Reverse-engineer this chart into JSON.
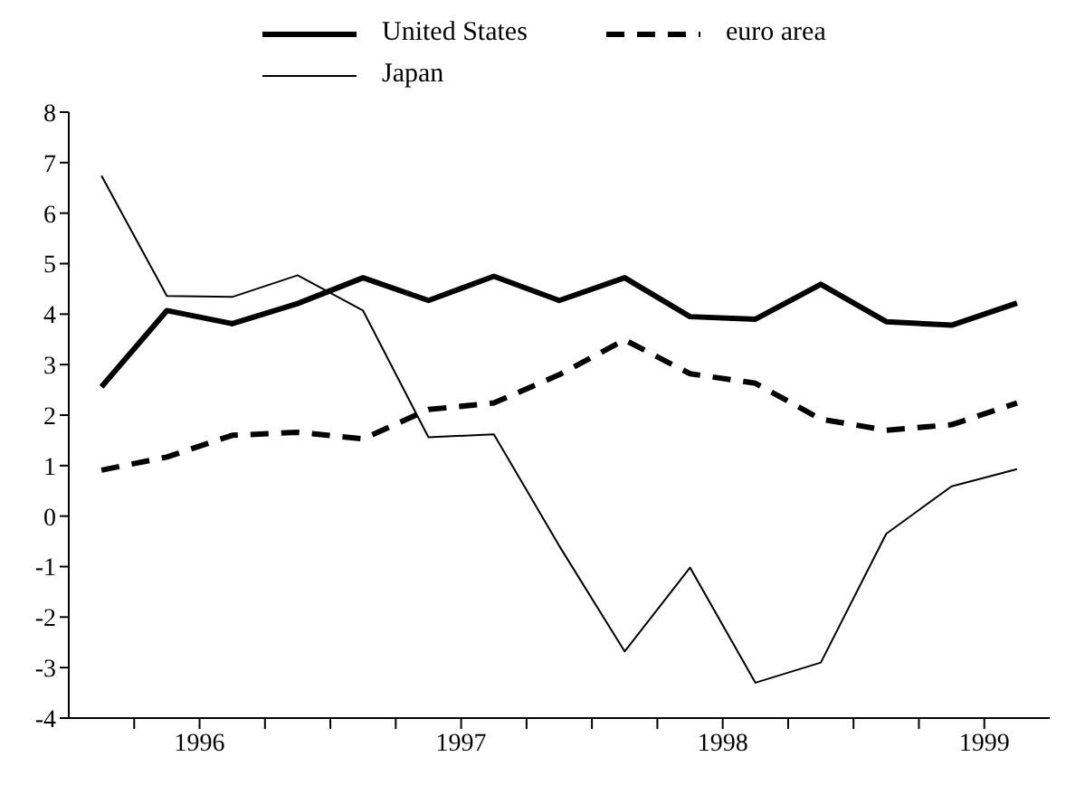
{
  "chart_data": {
    "type": "line",
    "legend": "top",
    "grid": false,
    "marker": "none",
    "x": [
      1995.625,
      1995.875,
      1996.125,
      1996.375,
      1996.625,
      1996.875,
      1997.125,
      1997.375,
      1997.625,
      1997.875,
      1998.125,
      1998.375,
      1998.625,
      1998.875,
      1999.125
    ],
    "xlim": [
      1995.5,
      1999.25
    ],
    "xticks": [
      {
        "value": 1995.75,
        "label": null
      },
      {
        "value": 1996,
        "label": "1996"
      },
      {
        "value": 1996.25,
        "label": null
      },
      {
        "value": 1996.5,
        "label": null
      },
      {
        "value": 1996.75,
        "label": null
      },
      {
        "value": 1997,
        "label": "1997"
      },
      {
        "value": 1997.25,
        "label": null
      },
      {
        "value": 1997.5,
        "label": null
      },
      {
        "value": 1997.75,
        "label": null
      },
      {
        "value": 1998,
        "label": "1998"
      },
      {
        "value": 1998.25,
        "label": null
      },
      {
        "value": 1998.5,
        "label": null
      },
      {
        "value": 1998.75,
        "label": null
      },
      {
        "value": 1999,
        "label": "1999"
      }
    ],
    "ylim": [
      -4,
      8
    ],
    "yticks": [
      -4,
      -3,
      -2,
      -1,
      0,
      1,
      2,
      3,
      4,
      5,
      6,
      7,
      8
    ],
    "series": [
      {
        "name": "United States",
        "color": "#000000",
        "line_style": "solid",
        "values": [
          2.56,
          4.07,
          3.81,
          4.21,
          4.72,
          4.27,
          4.75,
          4.27,
          4.72,
          3.95,
          3.9,
          4.59,
          3.85,
          3.78,
          4.22
        ]
      },
      {
        "name": "euro area",
        "color": "#000000",
        "line_style": "dashed",
        "values": [
          0.91,
          1.17,
          1.6,
          1.66,
          1.53,
          2.11,
          2.24,
          2.8,
          3.49,
          2.82,
          2.63,
          1.92,
          1.7,
          1.81,
          2.24
        ]
      },
      {
        "name": "Japan",
        "color": "#000000",
        "line_style": "solid",
        "values": [
          6.74,
          4.36,
          4.34,
          4.77,
          4.07,
          1.56,
          1.62,
          -0.59,
          -2.68,
          -1.02,
          -3.3,
          -2.9,
          -0.35,
          0.59,
          0.93
        ]
      }
    ]
  }
}
